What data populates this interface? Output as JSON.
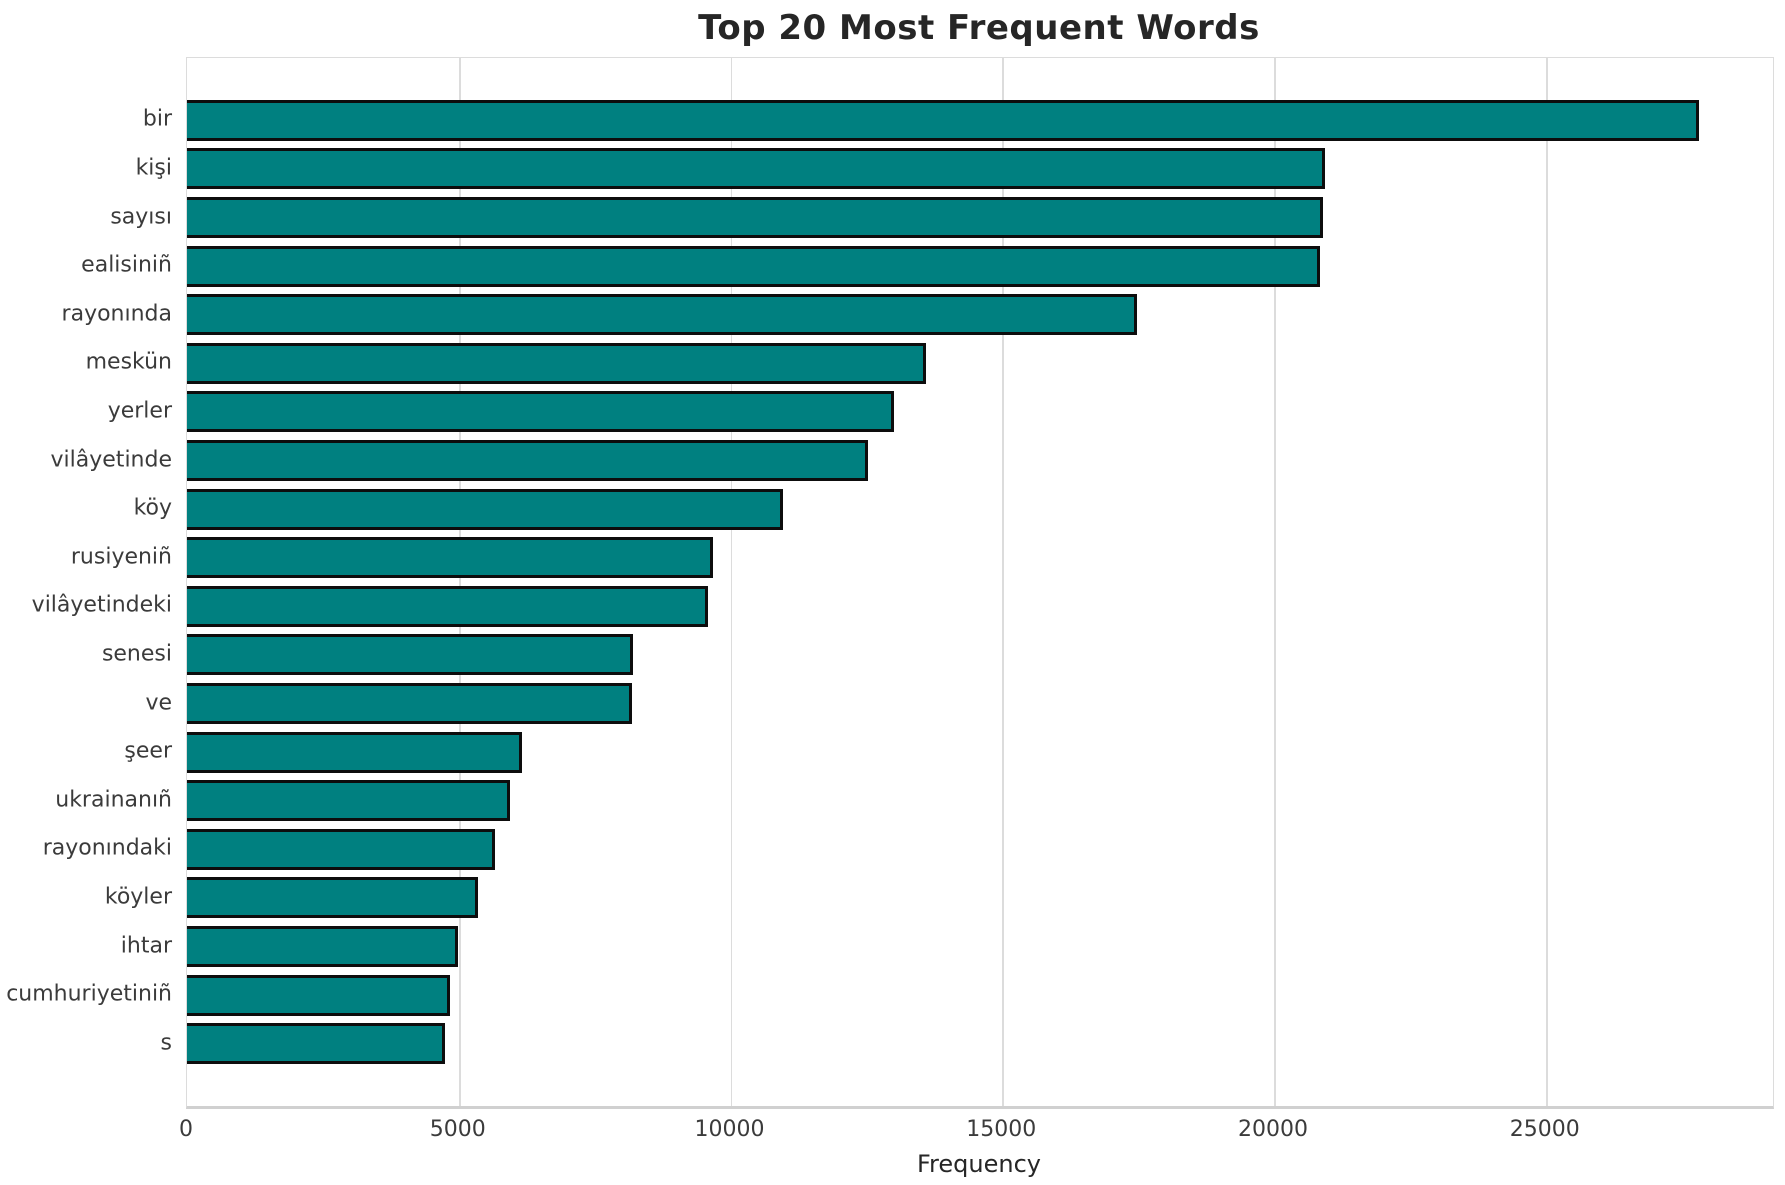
{
  "title": "Top 20 Most Frequent Words",
  "x_axis_label": "Frequency",
  "colors": {
    "bar_fill": "#008080",
    "bar_edge": "#0d0d0d",
    "grid": "#dcdcdc",
    "title_text": "#262626",
    "tick_text": "#3b3b3b",
    "background": "#ffffff"
  },
  "chart_data": {
    "type": "bar",
    "orientation": "horizontal",
    "title": "Top 20 Most Frequent Words",
    "xlabel": "Frequency",
    "ylabel": "",
    "categories": [
      "bir",
      "kişi",
      "sayısı",
      "ealisiniñ",
      "rayonında",
      "meskün",
      "yerler",
      "vilâyetinde",
      "köy",
      "rusiyeniñ",
      "vilâyetindeki",
      "senesi",
      "ve",
      "şeer",
      "ukrainanıñ",
      "rayonındaki",
      "köyler",
      "ihtar",
      "cumhuriyetiniñ",
      "s"
    ],
    "values": [
      27770,
      20890,
      20840,
      20790,
      17420,
      13540,
      12950,
      12470,
      10915,
      9630,
      9530,
      8150,
      8125,
      6110,
      5880,
      5620,
      5300,
      4925,
      4785,
      4690
    ],
    "xlim": [
      0,
      29180
    ],
    "xticks": [
      0,
      5000,
      10000,
      15000,
      20000,
      25000
    ],
    "grid": true,
    "legend": false,
    "bar_color": "#008080",
    "bar_edge_color": "#000000"
  }
}
